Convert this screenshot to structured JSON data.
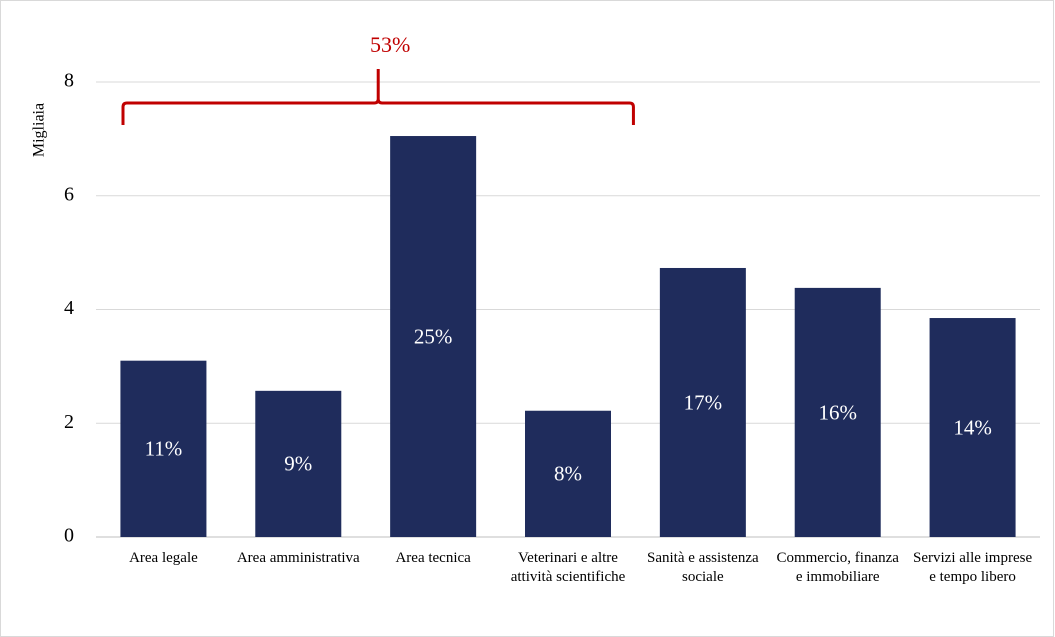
{
  "chart_data": {
    "type": "bar",
    "y_label": "Migliaia",
    "categories": [
      "Area legale",
      "Area amministrativa",
      "Area tecnica",
      "Veterinari e altre attività scientifiche",
      "Sanità e assistenza sociale",
      "Commercio, finanza e immobiliare",
      "Servizi alle imprese e tempo libero"
    ],
    "values": [
      3.1,
      2.57,
      7.05,
      2.22,
      4.73,
      4.38,
      3.85
    ],
    "share_labels": [
      "11%",
      "9%",
      "25%",
      "8%",
      "17%",
      "16%",
      "14%"
    ],
    "bracket": {
      "label": "53%",
      "from": 0,
      "to": 3,
      "color": "#c00000"
    },
    "color": "#1f2c5c",
    "ylim": [
      0,
      8
    ],
    "yticks": [
      0,
      2,
      4,
      6,
      8
    ],
    "grid": true
  }
}
